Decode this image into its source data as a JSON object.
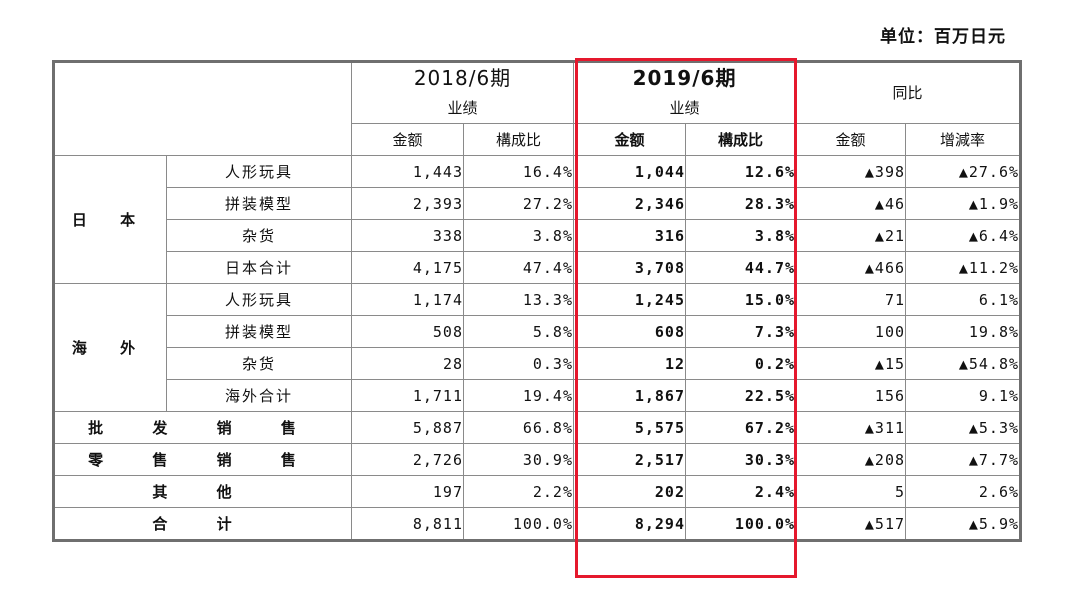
{
  "unit_label": "单位：百万日元",
  "header": {
    "period_2018": "2018/6期",
    "period_2019": "2019/6期",
    "results": "业绩",
    "yoy": "同比",
    "amount": "金额",
    "ratio": "構成比",
    "growth": "增減率"
  },
  "groups": {
    "japan": "日 本",
    "overseas": "海 外"
  },
  "rows": {
    "jp_figures": {
      "label": "人形玩具",
      "a18": "1,443",
      "r18": "16.4%",
      "a19": "1,044",
      "r19": "12.6%",
      "ya": "▲398",
      "yr": "▲27.6%"
    },
    "jp_models": {
      "label": "拼装模型",
      "a18": "2,393",
      "r18": "27.2%",
      "a19": "2,346",
      "r19": "28.3%",
      "ya": "▲46",
      "yr": "▲1.9%"
    },
    "jp_misc": {
      "label": "杂货",
      "a18": "338",
      "r18": "3.8%",
      "a19": "316",
      "r19": "3.8%",
      "ya": "▲21",
      "yr": "▲6.4%"
    },
    "jp_total": {
      "label": "日本合计",
      "a18": "4,175",
      "r18": "47.4%",
      "a19": "3,708",
      "r19": "44.7%",
      "ya": "▲466",
      "yr": "▲11.2%"
    },
    "os_figures": {
      "label": "人形玩具",
      "a18": "1,174",
      "r18": "13.3%",
      "a19": "1,245",
      "r19": "15.0%",
      "ya": "71",
      "yr": "6.1%"
    },
    "os_models": {
      "label": "拼装模型",
      "a18": "508",
      "r18": "5.8%",
      "a19": "608",
      "r19": "7.3%",
      "ya": "100",
      "yr": "19.8%"
    },
    "os_misc": {
      "label": "杂货",
      "a18": "28",
      "r18": "0.3%",
      "a19": "12",
      "r19": "0.2%",
      "ya": "▲15",
      "yr": "▲54.8%"
    },
    "os_total": {
      "label": "海外合计",
      "a18": "1,711",
      "r18": "19.4%",
      "a19": "1,867",
      "r19": "22.5%",
      "ya": "156",
      "yr": "9.1%"
    },
    "wholesale": {
      "label": "批 发 销 售",
      "a18": "5,887",
      "r18": "66.8%",
      "a19": "5,575",
      "r19": "67.2%",
      "ya": "▲311",
      "yr": "▲5.3%"
    },
    "retail": {
      "label": "零 售 销 售",
      "a18": "2,726",
      "r18": "30.9%",
      "a19": "2,517",
      "r19": "30.3%",
      "ya": "▲208",
      "yr": "▲7.7%"
    },
    "other": {
      "label": "其 他",
      "a18": "197",
      "r18": "2.2%",
      "a19": "202",
      "r19": "2.4%",
      "ya": "5",
      "yr": "2.6%"
    },
    "total": {
      "label": "合 计",
      "a18": "8,811",
      "r18": "100.0%",
      "a19": "8,294",
      "r19": "100.0%",
      "ya": "▲517",
      "yr": "▲5.9%"
    }
  },
  "highlight_color": "#e5182d",
  "header_bg": "#eaf2dc"
}
